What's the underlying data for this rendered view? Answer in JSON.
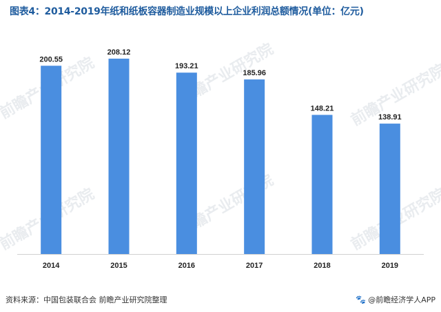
{
  "title": "图表4：2014-2019年纸和纸板容器制造业规模以上企业利润总额情况(单位：亿元)",
  "source": "资料来源：中国包装联合会 前瞻产业研究院整理",
  "brand": "@前瞻经济学人APP",
  "watermark": "前瞻产业研究院",
  "colors": {
    "bar": "#4a8ee0",
    "title": "#1f5c9e",
    "axis": "#d0d0d0"
  },
  "chart_data": {
    "type": "bar",
    "title": "图表4：2014-2019年纸和纸板容器制造业规模以上企业利润总额情况(单位：亿元)",
    "xlabel": "",
    "ylabel": "",
    "categories": [
      "2014",
      "2015",
      "2016",
      "2017",
      "2018",
      "2019"
    ],
    "values": [
      200.55,
      208.12,
      193.21,
      185.96,
      148.21,
      138.91
    ],
    "value_labels": [
      "200.55",
      "208.12",
      "193.21",
      "185.96",
      "148.21",
      "138.91"
    ],
    "ylim": [
      0,
      250
    ],
    "grid": false,
    "legend": "none"
  }
}
